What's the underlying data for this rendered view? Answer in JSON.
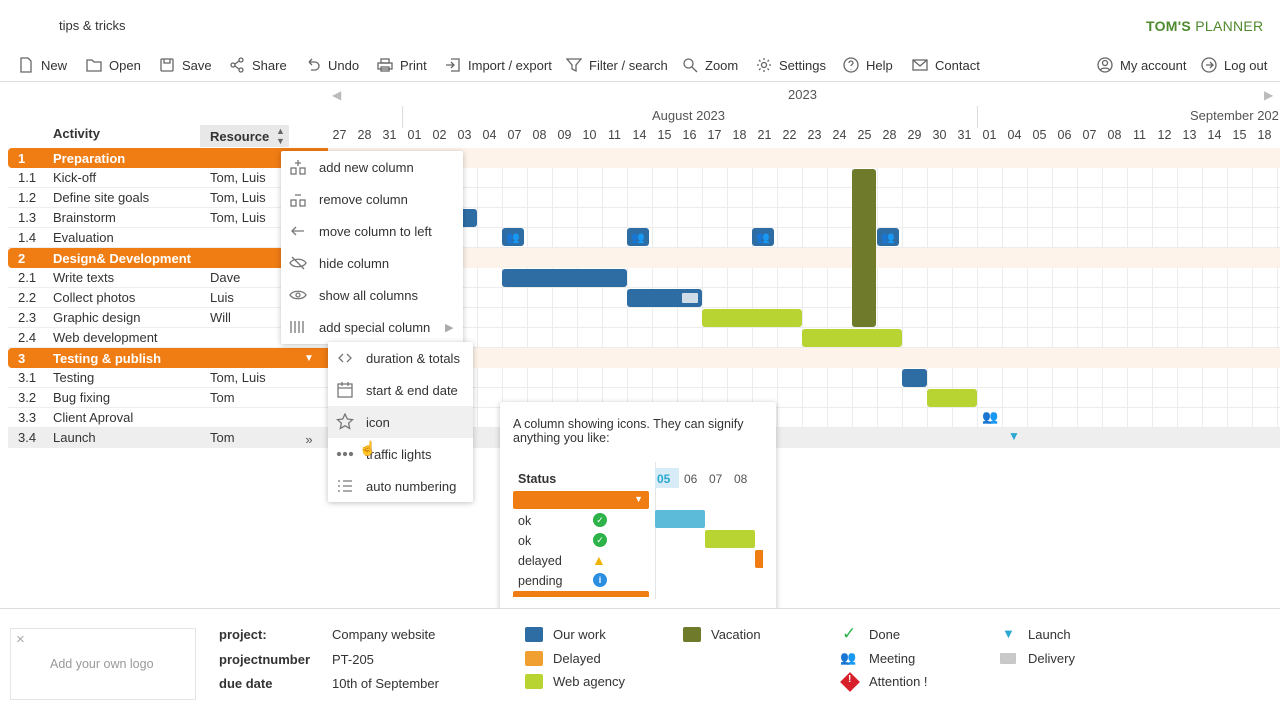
{
  "header": {
    "tips": "tips & tricks",
    "logo_main": "TOM'S",
    "logo_sub": "PLANNER"
  },
  "toolbar": {
    "left": [
      {
        "label": "New",
        "icon": "new-file-icon"
      },
      {
        "label": "Open",
        "icon": "folder-icon"
      },
      {
        "label": "Save",
        "icon": "save-icon"
      },
      {
        "label": "Share",
        "icon": "share-icon"
      },
      {
        "label": "Undo",
        "icon": "undo-icon"
      },
      {
        "label": "Print",
        "icon": "print-icon"
      },
      {
        "label": "Import / export",
        "icon": "import-icon"
      },
      {
        "label": "Filter / search",
        "icon": "filter-icon"
      },
      {
        "label": "Zoom",
        "icon": "zoom-icon"
      },
      {
        "label": "Settings",
        "icon": "gear-icon"
      },
      {
        "label": "Help",
        "icon": "help-icon"
      },
      {
        "label": "Contact",
        "icon": "mail-icon"
      }
    ],
    "right": [
      {
        "label": "My account",
        "icon": "user-icon"
      },
      {
        "label": "Log out",
        "icon": "logout-icon"
      }
    ]
  },
  "grid": {
    "col_activity": "Activity",
    "col_resource": "Resource",
    "rows": [
      {
        "num": "1",
        "act": "Preparation",
        "res": "",
        "group": true
      },
      {
        "num": "1.1",
        "act": "Kick-off",
        "res": "Tom, Luis"
      },
      {
        "num": "1.2",
        "act": "Define site goals",
        "res": "Tom, Luis"
      },
      {
        "num": "1.3",
        "act": "Brainstorm",
        "res": "Tom, Luis"
      },
      {
        "num": "1.4",
        "act": "Evaluation",
        "res": ""
      },
      {
        "num": "2",
        "act": "Design& Development",
        "res": "",
        "group": true
      },
      {
        "num": "2.1",
        "act": "Write texts",
        "res": "Dave"
      },
      {
        "num": "2.2",
        "act": "Collect photos",
        "res": "Luis"
      },
      {
        "num": "2.3",
        "act": "Graphic design",
        "res": "Will"
      },
      {
        "num": "2.4",
        "act": "Web development",
        "res": ""
      },
      {
        "num": "3",
        "act": "Testing & publish",
        "res": "",
        "group": true
      },
      {
        "num": "3.1",
        "act": "Testing",
        "res": "Tom, Luis"
      },
      {
        "num": "3.2",
        "act": "Bug fixing",
        "res": "Tom"
      },
      {
        "num": "3.3",
        "act": "Client Aproval",
        "res": ""
      },
      {
        "num": "3.4",
        "act": "Launch",
        "res": "Tom"
      }
    ]
  },
  "timeline": {
    "year": "2023",
    "month1": "August 2023",
    "month2": "September 202",
    "days": [
      "27",
      "28",
      "31",
      "01",
      "02",
      "03",
      "04",
      "07",
      "08",
      "09",
      "10",
      "11",
      "14",
      "15",
      "16",
      "17",
      "18",
      "21",
      "22",
      "23",
      "24",
      "25",
      "28",
      "29",
      "30",
      "31",
      "01",
      "04",
      "05",
      "06",
      "07",
      "08",
      "11",
      "12",
      "13",
      "14",
      "15",
      "18"
    ]
  },
  "menu": {
    "items": [
      {
        "label": "add new column",
        "icon": "add-column-icon"
      },
      {
        "label": "remove column",
        "icon": "remove-column-icon"
      },
      {
        "label": "move column to left",
        "icon": "arrow-left-icon"
      },
      {
        "label": "hide column",
        "icon": "eye-off-icon"
      },
      {
        "label": "show all columns",
        "icon": "eye-icon"
      },
      {
        "label": "add special column",
        "icon": "columns-icon"
      }
    ],
    "sub": [
      {
        "label": "duration & totals",
        "icon": "code-brackets-icon"
      },
      {
        "label": "start & end date",
        "icon": "calendar-icon"
      },
      {
        "label": "icon",
        "icon": "star-icon"
      },
      {
        "label": "traffic lights",
        "icon": "dots-icon"
      },
      {
        "label": "auto numbering",
        "icon": "numbered-list-icon"
      }
    ]
  },
  "tooltip": {
    "text": "A column showing icons. They can signify anything you like:",
    "col_status": "Status",
    "days": [
      "05",
      "06",
      "07",
      "08"
    ],
    "rows": [
      {
        "status": "ok",
        "icon": "check-icon"
      },
      {
        "status": "ok",
        "icon": "check-icon"
      },
      {
        "status": "delayed",
        "icon": "warning-icon"
      },
      {
        "status": "pending",
        "icon": "info-icon"
      }
    ]
  },
  "footer": {
    "logo_placeholder": "Add your own logo",
    "project_label": "project:",
    "project_value": "Company website",
    "projectnumber_label": "projectnumber",
    "projectnumber_value": "PT-205",
    "duedate_label": "due date",
    "duedate_value": "10th of September",
    "legend": [
      {
        "label": "Our work",
        "color": "#2e6da4"
      },
      {
        "label": "Delayed",
        "color": "#f0a030"
      },
      {
        "label": "Web agency",
        "color": "#b8d432"
      },
      {
        "label": "Vacation",
        "color": "#6f7a2a"
      }
    ],
    "legend2": [
      {
        "label": "Done",
        "icon": "check-icon"
      },
      {
        "label": "Meeting",
        "icon": "meeting-icon"
      },
      {
        "label": "Attention !",
        "icon": "attention-icon"
      },
      {
        "label": "Launch",
        "icon": "launch-icon"
      },
      {
        "label": "Delivery",
        "icon": "delivery-icon"
      }
    ]
  },
  "colors": {
    "orange": "#f07c14",
    "blue": "#2e6da4",
    "lime": "#b8d432",
    "olive": "#6f7a2a"
  }
}
